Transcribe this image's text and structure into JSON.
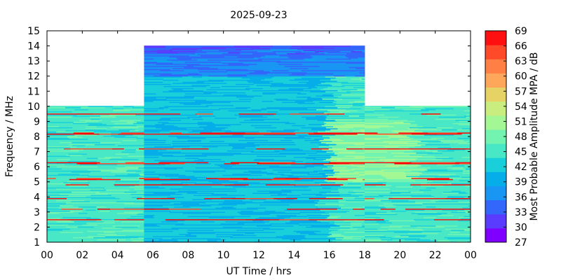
{
  "chart_data": {
    "type": "heatmap",
    "title": "2025-09-23",
    "xlabel": "UT Time / hrs",
    "ylabel": "Frequency / MHz",
    "colorbar_label": "Most Probable Amplitude MPA / dB",
    "xlim": [
      0,
      24
    ],
    "ylim": [
      1,
      15
    ],
    "x_ticks": [
      "00",
      "02",
      "04",
      "06",
      "08",
      "10",
      "12",
      "14",
      "16",
      "18",
      "20",
      "22",
      "00"
    ],
    "y_ticks": [
      "1",
      "2",
      "3",
      "4",
      "5",
      "6",
      "7",
      "8",
      "9",
      "10",
      "11",
      "12",
      "13",
      "14",
      "15"
    ],
    "colorbar": {
      "ticks": [
        "27",
        "30",
        "33",
        "36",
        "39",
        "42",
        "45",
        "48",
        "51",
        "54",
        "57",
        "60",
        "63",
        "66",
        "69"
      ],
      "colors": [
        "#8000ff",
        "#5a3cfe",
        "#3366fb",
        "#1996f3",
        "#06aee9",
        "#19d0da",
        "#48e8c7",
        "#72f4b0",
        "#a3f895",
        "#c9ed7e",
        "#e6d265",
        "#fea65a",
        "#ff7f45",
        "#ff4a2a",
        "#ff1010",
        "#ff0000"
      ]
    },
    "coverage": [
      {
        "time_range": [
          0,
          5.5
        ],
        "freq_range": [
          1,
          10
        ]
      },
      {
        "time_range": [
          5.5,
          18
        ],
        "freq_range": [
          1,
          14
        ]
      },
      {
        "time_range": [
          18,
          24
        ],
        "freq_range": [
          1,
          10
        ]
      }
    ],
    "strong_bands_MHz": [
      2.5,
      3.2,
      3.9,
      4.8,
      5.2,
      6.2,
      6.3,
      7.2,
      8.2,
      9.5
    ],
    "high_freq_fade_MHz": 13.5
  }
}
